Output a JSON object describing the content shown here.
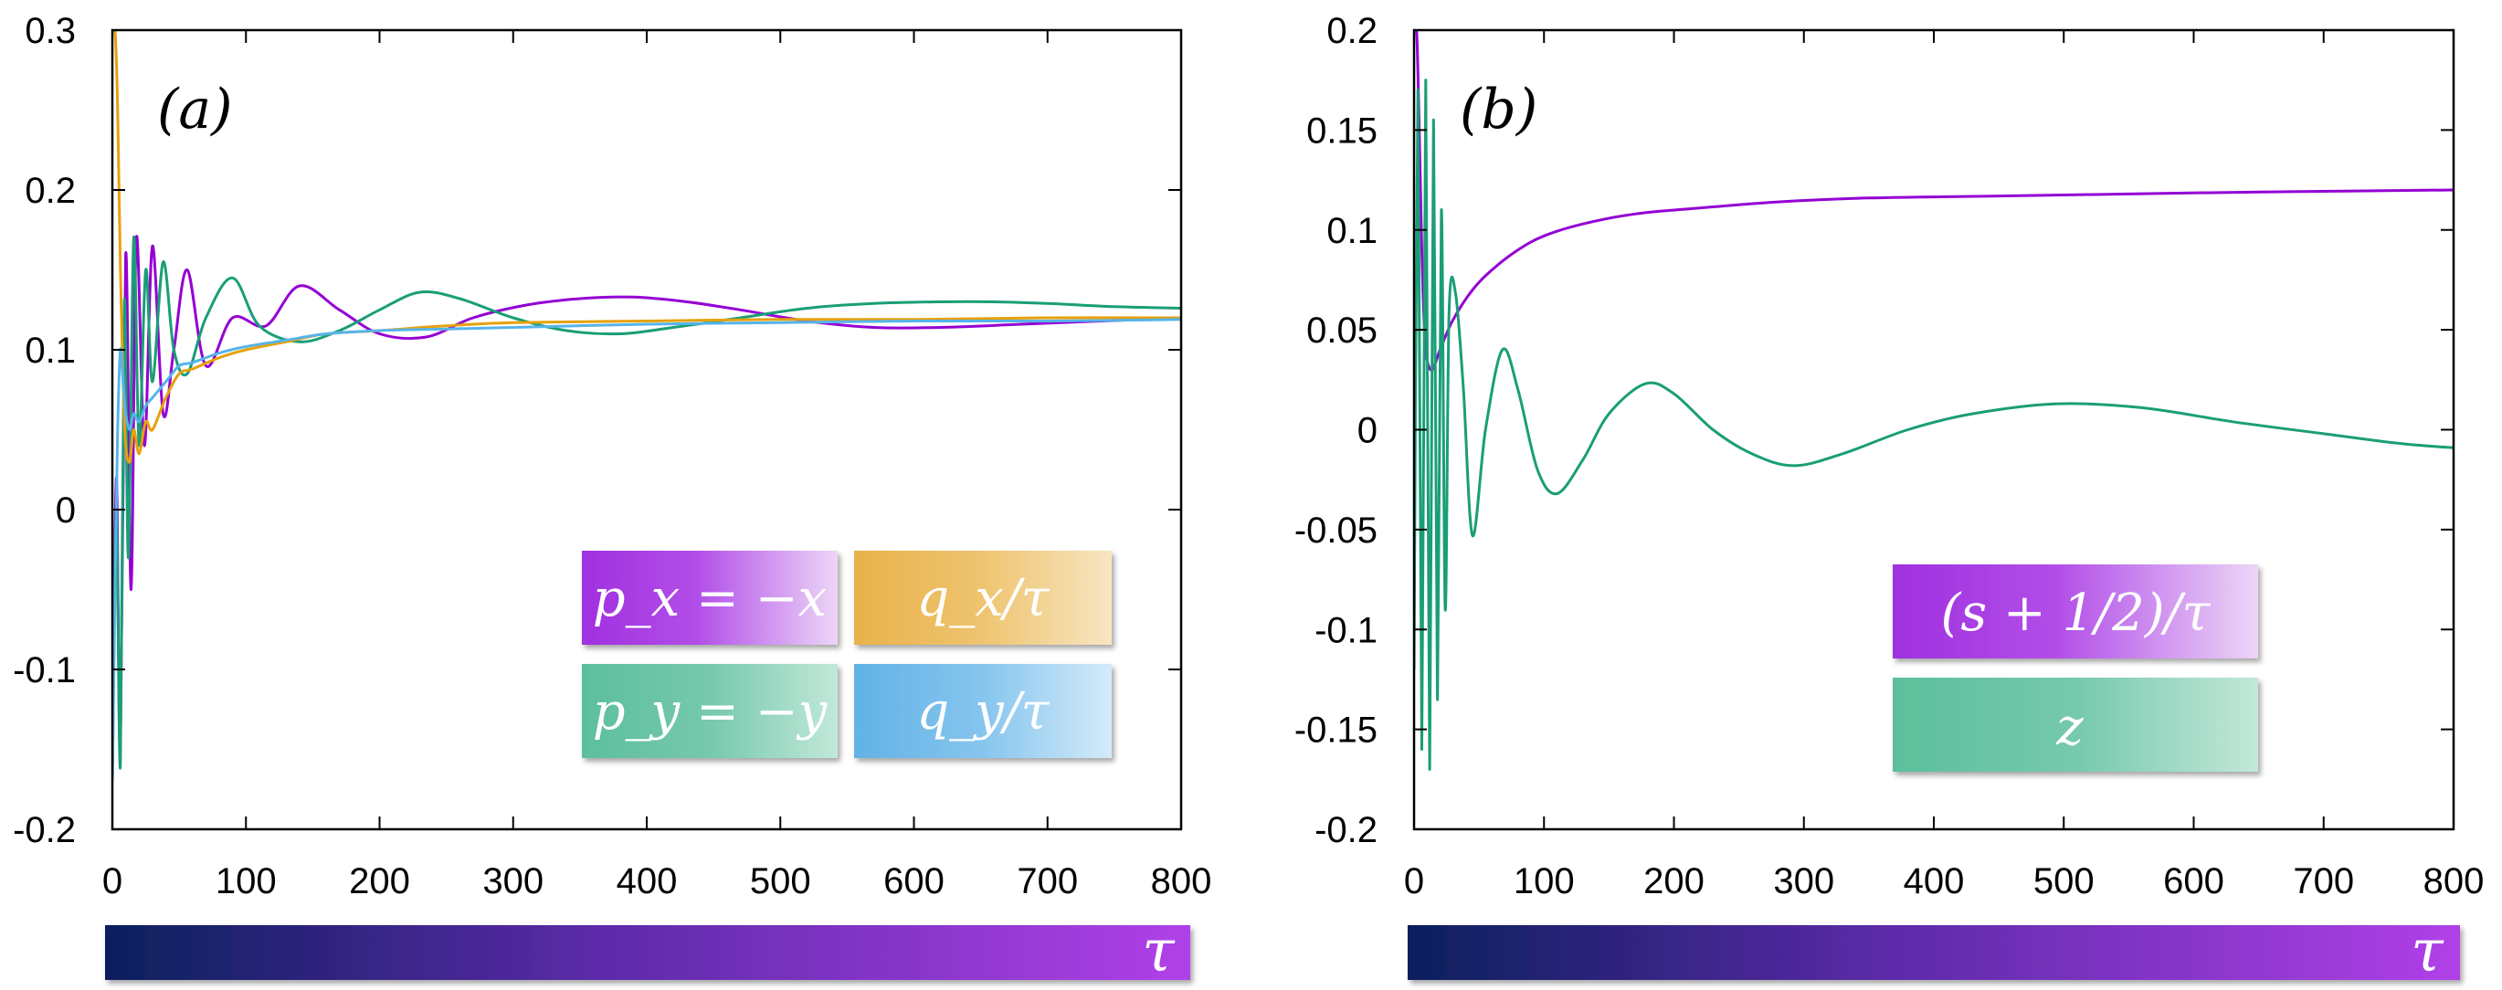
{
  "colors": {
    "purple": "#9400d3",
    "green": "#1a9e77",
    "orange": "#e6a10c",
    "sky": "#56b4e9",
    "navy": "#0b1f5c",
    "violet": "#b040e8"
  },
  "chart_data": [
    {
      "type": "line",
      "panel_label": "(a)",
      "xlabel": "τ",
      "xlim": [
        0,
        800
      ],
      "ylim": [
        -0.2,
        0.3
      ],
      "xticks": [
        "0",
        "100",
        "200",
        "300",
        "400",
        "500",
        "600",
        "700",
        "800"
      ],
      "yticks": [
        "-0.2",
        "-0.1",
        "0",
        "0.1",
        "0.2",
        "0.3"
      ],
      "grid": false,
      "legend_position": "lower-right",
      "series": [
        {
          "name": "p_x = −x",
          "color": "#9400d3",
          "x": [
            0,
            3,
            6,
            10,
            14,
            18,
            24,
            30,
            38,
            46,
            56,
            70,
            90,
            115,
            140,
            170,
            200,
            235,
            270,
            310,
            350,
            390,
            430,
            470,
            520,
            570,
            620,
            680,
            740,
            800
          ],
          "y": [
            -0.16,
            0.02,
            -0.15,
            0.16,
            -0.05,
            0.17,
            0.04,
            0.165,
            0.06,
            0.1,
            0.15,
            0.09,
            0.12,
            0.115,
            0.14,
            0.125,
            0.11,
            0.108,
            0.12,
            0.128,
            0.132,
            0.133,
            0.13,
            0.125,
            0.118,
            0.114,
            0.114,
            0.116,
            0.118,
            0.12
          ]
        },
        {
          "name": "p_y = −y",
          "color": "#1a9e77",
          "x": [
            0,
            3,
            6,
            9,
            12,
            16,
            20,
            25,
            30,
            38,
            46,
            56,
            70,
            90,
            110,
            140,
            170,
            200,
            230,
            260,
            300,
            340,
            380,
            420,
            470,
            520,
            570,
            620,
            660,
            700,
            750,
            800
          ],
          "y": [
            -0.17,
            0.0,
            -0.16,
            0.13,
            -0.03,
            0.17,
            0.04,
            0.15,
            0.08,
            0.155,
            0.1,
            0.085,
            0.12,
            0.145,
            0.115,
            0.105,
            0.112,
            0.125,
            0.136,
            0.132,
            0.12,
            0.112,
            0.11,
            0.114,
            0.12,
            0.126,
            0.129,
            0.13,
            0.13,
            0.129,
            0.127,
            0.126
          ]
        },
        {
          "name": "q_x/τ",
          "color": "#e6a10c",
          "x": [
            0,
            2,
            4,
            6,
            8,
            10,
            13,
            16,
            20,
            25,
            30,
            40,
            50,
            60,
            80,
            100,
            130,
            160,
            200,
            250,
            300,
            400,
            500,
            600,
            700,
            800
          ],
          "y": [
            0.3,
            0.3,
            0.25,
            0.15,
            0.08,
            0.04,
            0.03,
            0.05,
            0.035,
            0.055,
            0.05,
            0.07,
            0.085,
            0.088,
            0.095,
            0.1,
            0.105,
            0.11,
            0.112,
            0.115,
            0.117,
            0.118,
            0.119,
            0.119,
            0.12,
            0.12
          ]
        },
        {
          "name": "q_y/τ",
          "color": "#56b4e9",
          "x": [
            0,
            2,
            4,
            6,
            8,
            10,
            13,
            16,
            20,
            25,
            30,
            40,
            50,
            60,
            80,
            100,
            130,
            160,
            200,
            250,
            300,
            400,
            500,
            600,
            700,
            800
          ],
          "y": [
            -0.17,
            -0.05,
            0.05,
            0.1,
            0.08,
            0.06,
            0.05,
            0.06,
            0.055,
            0.065,
            0.07,
            0.08,
            0.09,
            0.092,
            0.098,
            0.102,
            0.106,
            0.11,
            0.112,
            0.113,
            0.114,
            0.116,
            0.117,
            0.118,
            0.118,
            0.119
          ]
        }
      ]
    },
    {
      "type": "line",
      "panel_label": "(b)",
      "xlabel": "τ",
      "xlim": [
        0,
        800
      ],
      "ylim": [
        -0.2,
        0.2
      ],
      "xticks": [
        "0",
        "100",
        "200",
        "300",
        "400",
        "500",
        "600",
        "700",
        "800"
      ],
      "yticks": [
        "-0.2",
        "-0.15",
        "-0.1",
        "-0.05",
        "0",
        "0.05",
        "0.1",
        "0.15",
        "0.2"
      ],
      "grid": false,
      "legend_position": "lower-right",
      "series": [
        {
          "name": "(s + 1/2)/τ",
          "color": "#9400d3",
          "x": [
            0,
            2,
            4,
            6,
            8,
            10,
            14,
            20,
            30,
            45,
            60,
            80,
            100,
            130,
            170,
            220,
            280,
            350,
            450,
            550,
            650,
            800
          ],
          "y": [
            0.2,
            0.2,
            0.15,
            0.09,
            0.05,
            0.035,
            0.03,
            0.04,
            0.055,
            0.07,
            0.08,
            0.09,
            0.097,
            0.103,
            0.108,
            0.111,
            0.114,
            0.116,
            0.117,
            0.118,
            0.119,
            0.12
          ]
        },
        {
          "name": "z",
          "color": "#1a9e77",
          "x": [
            0,
            3,
            6,
            9,
            12,
            15,
            18,
            21,
            24,
            27,
            32,
            38,
            45,
            55,
            68,
            80,
            95,
            110,
            130,
            150,
            178,
            200,
            230,
            260,
            292,
            330,
            380,
            430,
            495,
            560,
            630,
            700,
            760,
            800
          ],
          "y": [
            -0.12,
            0.17,
            -0.16,
            0.175,
            -0.17,
            0.155,
            -0.135,
            0.11,
            -0.09,
            0.06,
            0.068,
            0.02,
            -0.053,
            0.0,
            0.04,
            0.02,
            -0.02,
            -0.032,
            -0.015,
            0.008,
            0.023,
            0.018,
            0.0,
            -0.012,
            -0.018,
            -0.012,
            0.0,
            0.008,
            0.013,
            0.011,
            0.004,
            -0.002,
            -0.007,
            -0.009
          ]
        }
      ]
    }
  ],
  "legend_a": [
    {
      "label": "p_x = −x",
      "color": "#9400d3"
    },
    {
      "label": "q_x/τ",
      "color": "#e6a10c"
    },
    {
      "label": "p_y = −y",
      "color": "#1a9e77"
    },
    {
      "label": "q_y/τ",
      "color": "#56b4e9"
    }
  ],
  "legend_b": [
    {
      "label": "(s + 1/2)/τ",
      "color": "#9400d3"
    },
    {
      "label": "z",
      "color": "#1a9e77"
    }
  ],
  "tau_label": "τ"
}
